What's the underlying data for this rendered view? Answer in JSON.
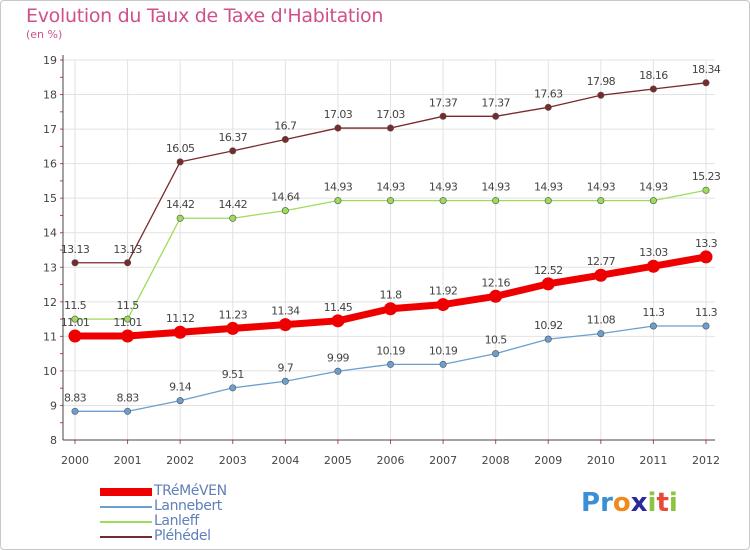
{
  "chart_data": {
    "type": "line",
    "title": "Evolution du Taux de Taxe d'Habitation",
    "subtitle": "(en %)",
    "x": [
      "2000",
      "2001",
      "2002",
      "2003",
      "2004",
      "2005",
      "2006",
      "2007",
      "2008",
      "2009",
      "2010",
      "2011",
      "2012"
    ],
    "ylim": [
      8,
      19
    ],
    "yticks": [
      "8",
      "9",
      "10",
      "11",
      "12",
      "13",
      "14",
      "15",
      "16",
      "17",
      "18",
      "19"
    ],
    "grid": true,
    "legend_position": "bottom-left",
    "series": [
      {
        "name": "TRéMéVEN",
        "color": "#ee0000",
        "values": [
          11.01,
          11.01,
          11.12,
          11.23,
          11.34,
          11.45,
          11.8,
          11.92,
          12.16,
          12.52,
          12.77,
          13.03,
          13.3
        ],
        "labels": [
          "11.01",
          "11.01",
          "11.12",
          "11.23",
          "11.34",
          "11.45",
          "11.8",
          "11.92",
          "12.16",
          "12.52",
          "12.77",
          "13.03",
          "13.3"
        ]
      },
      {
        "name": "Lannebert",
        "color": "#6c9fd0",
        "values": [
          8.83,
          8.83,
          9.14,
          9.51,
          9.7,
          9.99,
          10.19,
          10.19,
          10.5,
          10.92,
          11.08,
          11.3,
          11.3
        ],
        "labels": [
          "8.83",
          "8.83",
          "9.14",
          "9.51",
          "9.7",
          "9.99",
          "10.19",
          "10.19",
          "10.5",
          "10.92",
          "11.08",
          "11.3",
          "11.3"
        ]
      },
      {
        "name": "Lanleff",
        "color": "#9ddc5a",
        "values": [
          11.5,
          11.5,
          14.42,
          14.42,
          14.64,
          14.93,
          14.93,
          14.93,
          14.93,
          14.93,
          14.93,
          14.93,
          15.23
        ],
        "labels": [
          "11.5",
          "11.5",
          "14.42",
          "14.42",
          "14.64",
          "14.93",
          "14.93",
          "14.93",
          "14.93",
          "14.93",
          "14.93",
          "14.93",
          "15.23"
        ]
      },
      {
        "name": "Pléhédel",
        "color": "#7a2a2a",
        "values": [
          13.13,
          13.13,
          16.05,
          16.37,
          16.7,
          17.03,
          17.03,
          17.37,
          17.37,
          17.63,
          17.98,
          18.16,
          18.34
        ],
        "labels": [
          "13.13",
          "13.13",
          "16.05",
          "16.37",
          "16.7",
          "17.03",
          "17.03",
          "17.37",
          "17.37",
          "17.63",
          "17.98",
          "18.16",
          "18.34"
        ]
      }
    ]
  },
  "logo": {
    "letters": [
      "P",
      "r",
      "o",
      "x",
      "i",
      "t",
      "i"
    ],
    "colors": [
      "#3a8fd6",
      "#3a8fd6",
      "#f08a1c",
      "#2a2a9a",
      "#8ac53e",
      "#e84a3a",
      "#8ac53e"
    ]
  }
}
